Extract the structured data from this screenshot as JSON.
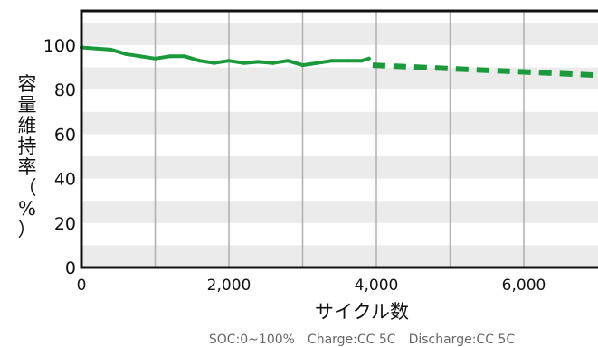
{
  "chart_data": {
    "type": "line",
    "xlabel": "サイクル数",
    "ylabel": "容量維持率（%）",
    "xlim": [
      0,
      7000
    ],
    "ylim": [
      0,
      115
    ],
    "x_ticks": [
      0,
      1000,
      2000,
      3000,
      4000,
      5000,
      6000
    ],
    "x_tick_labels": [
      "0",
      "",
      "2,000",
      "",
      "4,000",
      "",
      "6,000"
    ],
    "y_ticks": [
      0,
      20,
      40,
      60,
      80,
      100
    ],
    "y_tick_labels": [
      "0",
      "20",
      "40",
      "60",
      "80",
      "100"
    ],
    "grid": "vertical lines every 1,000 cycles; alternating gray bands every 10%",
    "note": "SOC:0~100%　Charge:CC 5C　Discharge:CC 5C",
    "series": [
      {
        "style": "solid",
        "color": "#1a9a3a",
        "x": [
          0,
          200,
          400,
          600,
          800,
          1000,
          1200,
          1400,
          1600,
          1800,
          2000,
          2200,
          2400,
          2600,
          2800,
          3000,
          3200,
          3400,
          3600,
          3800,
          3900
        ],
        "y": [
          99,
          98.5,
          98,
          96,
          95,
          94,
          95,
          95,
          93,
          92,
          93,
          92,
          92.5,
          92,
          93,
          91,
          92,
          93,
          93,
          93,
          94
        ]
      },
      {
        "style": "dashed",
        "color": "#1a9a3a",
        "x": [
          3950,
          7000
        ],
        "y": [
          91,
          86.5
        ]
      }
    ]
  }
}
